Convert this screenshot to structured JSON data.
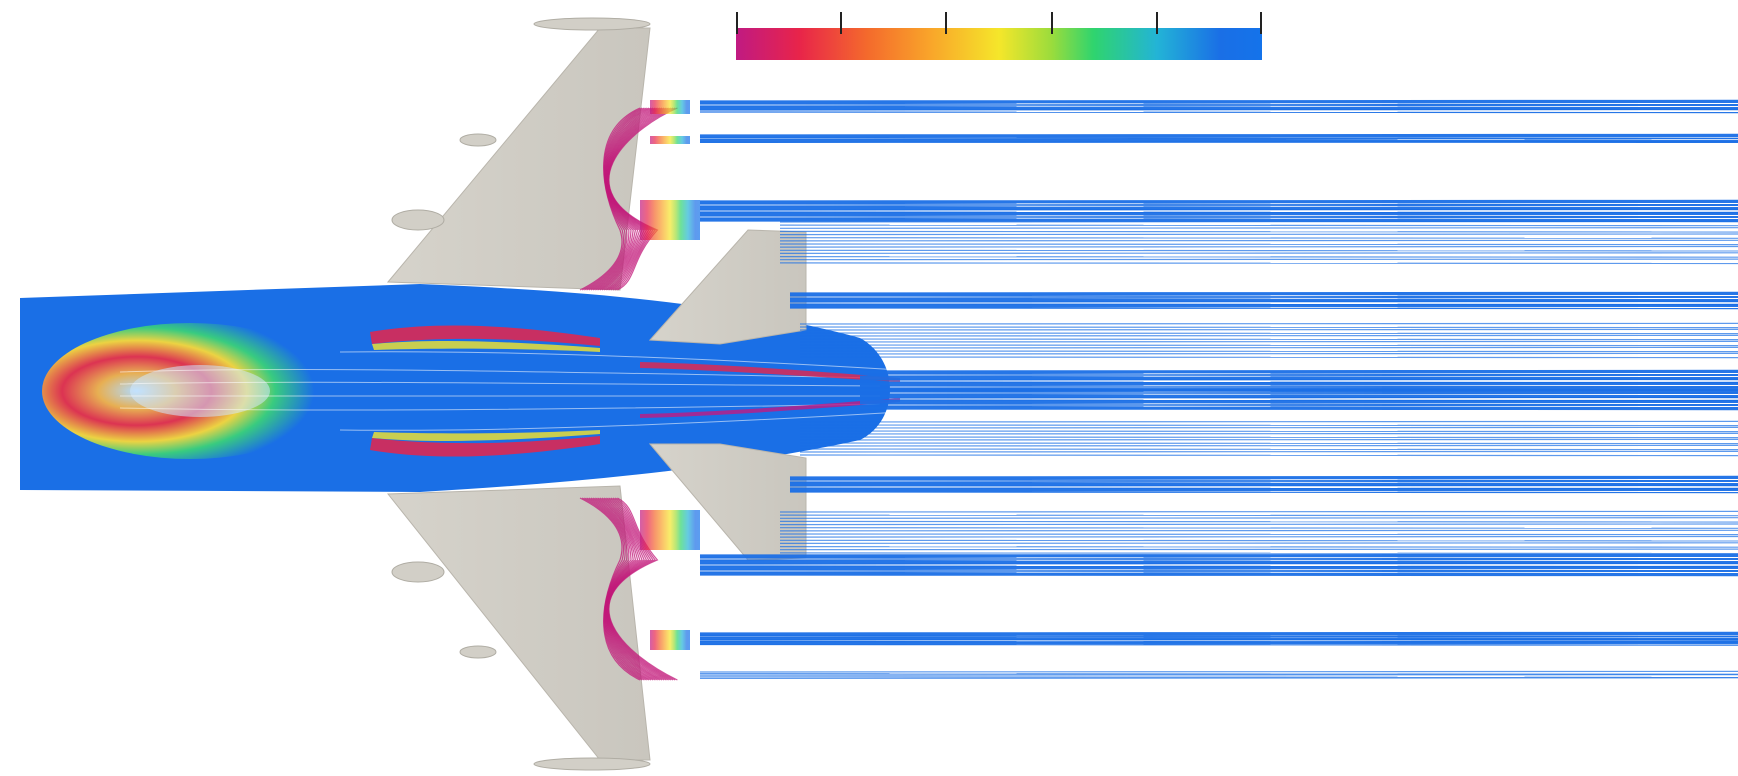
{
  "colors": {
    "background": "#ffffff",
    "aircraft_surface": "#cdcac2",
    "aircraft_edge": "#b9b5ac",
    "ramp": [
      "#c01a82",
      "#e8244a",
      "#f46a2c",
      "#f9a52a",
      "#f5e62a",
      "#9bdc3c",
      "#2fd46e",
      "#23b4d6",
      "#1a6fe6",
      "#1473ea"
    ],
    "low_value_stream": "#c2187a",
    "high_value_stream": "#1a6fe6"
  },
  "colorbar": {
    "tick_count": 6
  }
}
